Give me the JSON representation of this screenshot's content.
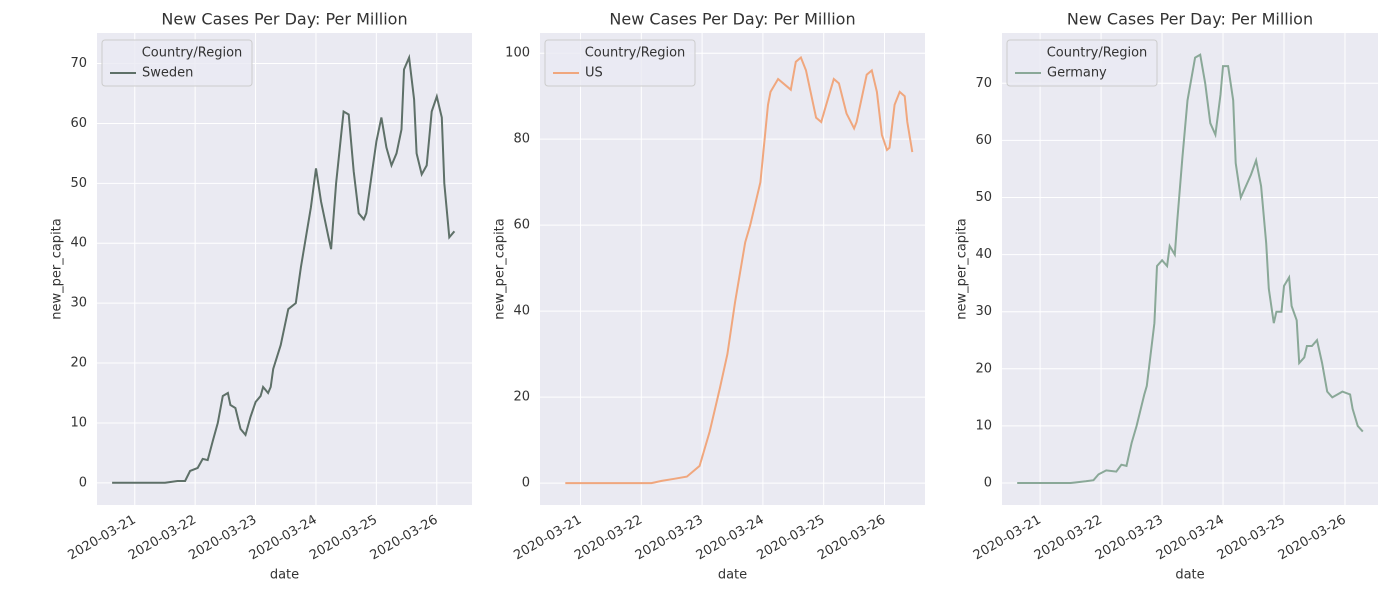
{
  "chart_data": [
    {
      "type": "line",
      "title": "New Cases Per Day: Per Million",
      "xlabel": "date",
      "ylabel": "new_per_capita",
      "legend_title": "Country/Region",
      "legend": "upper left",
      "grid": true,
      "xlim": [
        "2020-03-20T09:00",
        "2020-03-26T14:00"
      ],
      "xticks": [
        "2020-03-21",
        "2020-03-22",
        "2020-03-23",
        "2020-03-24",
        "2020-03-25",
        "2020-03-26"
      ],
      "ylim": [
        -3.7,
        75.1
      ],
      "yticks": [
        0,
        10,
        20,
        30,
        40,
        50,
        60,
        70
      ],
      "x": [
        "2020-03-20T15:00",
        "2020-03-21T00:00",
        "2020-03-21T12:00",
        "2020-03-21T17:00",
        "2020-03-21T20:00",
        "2020-03-21T22:00",
        "2020-03-22T01:00",
        "2020-03-22T03:00",
        "2020-03-22T05:00",
        "2020-03-22T07:00",
        "2020-03-22T09:00",
        "2020-03-22T11:00",
        "2020-03-22T13:00",
        "2020-03-22T14:00",
        "2020-03-22T16:00",
        "2020-03-22T18:00",
        "2020-03-22T20:00",
        "2020-03-22T22:00",
        "2020-03-23T00:00",
        "2020-03-23T02:00",
        "2020-03-23T03:00",
        "2020-03-23T05:00",
        "2020-03-23T06:00",
        "2020-03-23T07:00",
        "2020-03-23T10:00",
        "2020-03-23T13:00",
        "2020-03-23T16:00",
        "2020-03-23T18:00",
        "2020-03-23T22:00",
        "2020-03-24T00:00",
        "2020-03-24T02:00",
        "2020-03-24T05:00",
        "2020-03-24T06:00",
        "2020-03-24T08:00",
        "2020-03-24T10:00",
        "2020-03-24T11:00",
        "2020-03-24T13:00",
        "2020-03-24T15:00",
        "2020-03-24T17:00",
        "2020-03-24T19:00",
        "2020-03-24T20:00",
        "2020-03-24T22:00",
        "2020-03-25T00:00",
        "2020-03-25T02:00",
        "2020-03-25T04:00",
        "2020-03-25T06:00",
        "2020-03-25T08:00",
        "2020-03-25T10:00",
        "2020-03-25T11:00",
        "2020-03-25T13:00",
        "2020-03-25T15:00",
        "2020-03-25T16:00",
        "2020-03-25T18:00",
        "2020-03-25T20:00",
        "2020-03-25T22:00",
        "2020-03-26T00:00",
        "2020-03-26T02:00",
        "2020-03-26T03:00",
        "2020-03-26T05:00",
        "2020-03-26T07:00"
      ],
      "series": [
        {
          "name": "Sweden",
          "color": "#5e7068",
          "values": [
            0,
            0,
            0,
            0.3,
            0.3,
            2,
            2.5,
            4,
            3.8,
            7,
            10,
            14.5,
            15,
            13,
            12.5,
            9,
            8,
            11,
            13.5,
            14.5,
            16,
            15,
            16,
            19,
            23,
            29,
            30,
            36,
            46,
            52.5,
            47,
            41,
            39,
            50,
            58,
            62,
            61.5,
            52,
            45,
            44,
            45,
            51,
            57,
            61,
            56,
            53,
            55,
            59,
            69,
            71,
            64,
            55,
            51.5,
            53,
            62,
            64.5,
            61,
            50,
            41,
            42
          ]
        }
      ]
    },
    {
      "type": "line",
      "title": "New Cases Per Day: Per Million",
      "xlabel": "date",
      "ylabel": "new_per_capita",
      "legend_title": "Country/Region",
      "legend": "upper left",
      "grid": true,
      "xlim": [
        "2020-03-20T08:00",
        "2020-03-26T16:00"
      ],
      "xticks": [
        "2020-03-21",
        "2020-03-22",
        "2020-03-23",
        "2020-03-24",
        "2020-03-25",
        "2020-03-26"
      ],
      "ylim": [
        -5.1,
        104.7
      ],
      "yticks": [
        0,
        20,
        40,
        60,
        80,
        100
      ],
      "x": [
        "2020-03-20T18:00",
        "2020-03-21T12:00",
        "2020-03-22T04:00",
        "2020-03-22T08:00",
        "2020-03-22T13:00",
        "2020-03-22T18:00",
        "2020-03-22T23:00",
        "2020-03-23T03:00",
        "2020-03-23T07:00",
        "2020-03-23T10:00",
        "2020-03-23T13:00",
        "2020-03-23T17:00",
        "2020-03-23T19:00",
        "2020-03-23T23:00",
        "2020-03-24T02:00",
        "2020-03-24T03:00",
        "2020-03-24T06:00",
        "2020-03-24T08:00",
        "2020-03-24T11:00",
        "2020-03-24T13:00",
        "2020-03-24T15:00",
        "2020-03-24T17:00",
        "2020-03-24T21:00",
        "2020-03-24T23:00",
        "2020-03-25T01:00",
        "2020-03-25T04:00",
        "2020-03-25T06:00",
        "2020-03-25T09:00",
        "2020-03-25T12:00",
        "2020-03-25T13:00",
        "2020-03-25T17:00",
        "2020-03-25T19:00",
        "2020-03-25T21:00",
        "2020-03-25T23:00",
        "2020-03-26T01:00",
        "2020-03-26T02:00",
        "2020-03-26T04:00",
        "2020-03-26T06:00",
        "2020-03-26T08:00",
        "2020-03-26T09:00",
        "2020-03-26T11:00"
      ],
      "series": [
        {
          "name": "US",
          "color": "#f0a77e",
          "values": [
            0,
            0,
            0,
            0.5,
            1,
            1.5,
            4,
            12,
            22,
            30,
            42,
            56,
            60,
            70,
            88,
            91,
            94,
            93,
            91.5,
            98,
            99,
            96,
            85,
            84,
            88,
            94,
            93,
            86,
            82.5,
            84,
            95,
            96,
            91,
            81,
            77.5,
            78,
            88,
            91,
            90,
            84,
            77
          ]
        }
      ]
    },
    {
      "type": "line",
      "title": "New Cases Per Day: Per Million",
      "xlabel": "date",
      "ylabel": "new_per_capita",
      "legend_title": "Country/Region",
      "legend": "upper left",
      "grid": true,
      "xlim": [
        "2020-03-20T09:00",
        "2020-03-26T13:00"
      ],
      "xticks": [
        "2020-03-21",
        "2020-03-22",
        "2020-03-23",
        "2020-03-24",
        "2020-03-25",
        "2020-03-26"
      ],
      "ylim": [
        -3.85,
        78.8
      ],
      "yticks": [
        0,
        10,
        20,
        30,
        40,
        50,
        60,
        70
      ],
      "x": [
        "2020-03-20T15:00",
        "2020-03-21T00:00",
        "2020-03-21T12:00",
        "2020-03-21T18:00",
        "2020-03-21T21:00",
        "2020-03-21T23:00",
        "2020-03-22T02:00",
        "2020-03-22T06:00",
        "2020-03-22T08:00",
        "2020-03-22T10:00",
        "2020-03-22T12:00",
        "2020-03-22T14:00",
        "2020-03-22T17:00",
        "2020-03-22T18:00",
        "2020-03-22T21:00",
        "2020-03-22T22:00",
        "2020-03-23T00:00",
        "2020-03-23T02:00",
        "2020-03-23T03:00",
        "2020-03-23T05:00",
        "2020-03-23T06:00",
        "2020-03-23T08:00",
        "2020-03-23T10:00",
        "2020-03-23T13:00",
        "2020-03-23T15:00",
        "2020-03-23T17:00",
        "2020-03-23T19:00",
        "2020-03-23T21:00",
        "2020-03-23T23:00",
        "2020-03-24T00:00",
        "2020-03-24T02:00",
        "2020-03-24T04:00",
        "2020-03-24T05:00",
        "2020-03-24T07:00",
        "2020-03-24T09:00",
        "2020-03-24T11:00",
        "2020-03-24T13:00",
        "2020-03-24T15:00",
        "2020-03-24T17:00",
        "2020-03-24T18:00",
        "2020-03-24T20:00",
        "2020-03-24T21:00",
        "2020-03-24T23:00",
        "2020-03-25T00:00",
        "2020-03-25T02:00",
        "2020-03-25T03:00",
        "2020-03-25T05:00",
        "2020-03-25T06:00",
        "2020-03-25T08:00",
        "2020-03-25T09:00",
        "2020-03-25T11:00",
        "2020-03-25T13:00",
        "2020-03-25T15:00",
        "2020-03-25T17:00",
        "2020-03-25T19:00",
        "2020-03-25T21:00",
        "2020-03-25T23:00",
        "2020-03-26T02:00",
        "2020-03-26T03:00",
        "2020-03-26T05:00",
        "2020-03-26T07:00"
      ],
      "series": [
        {
          "name": "Germany",
          "color": "#8aa898",
          "values": [
            0,
            0,
            0,
            0.3,
            0.5,
            1.5,
            2.2,
            2,
            3.2,
            3,
            7,
            10,
            15.5,
            17,
            28,
            38,
            39,
            38,
            41.5,
            40,
            46,
            57,
            67,
            74.5,
            75,
            70,
            63,
            61,
            68,
            73,
            73,
            67,
            56,
            50,
            52,
            54,
            56.5,
            52,
            42,
            34,
            28,
            30,
            30,
            34.5,
            36,
            31,
            28.5,
            21,
            22,
            24,
            24,
            25,
            21,
            16,
            15,
            15.5,
            16,
            15.5,
            13,
            10,
            9
          ]
        }
      ]
    }
  ]
}
